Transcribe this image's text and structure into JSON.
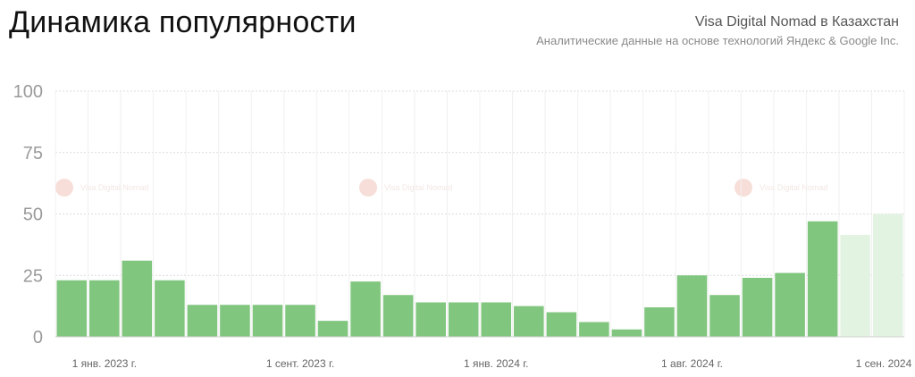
{
  "header": {
    "title": "Динамика популярности",
    "subtitle": "Visa Digital Nomad в Казахстан",
    "source": "Аналитические данные на основе технологий Яндекс & Google Inc."
  },
  "watermark": {
    "text": "Visa Digital Nomad",
    "color": "#f2c4bb"
  },
  "colors": {
    "bar": "#80c67e",
    "bar_projected": "#e3f3e2",
    "grid": "#dcdcdc"
  },
  "chart_data": {
    "type": "bar",
    "ylim": [
      0,
      100
    ],
    "yticks": [
      0,
      25,
      50,
      75,
      100
    ],
    "grid": true,
    "xtick_labels": [
      {
        "label": "1 янв. 2023 г.",
        "index": 1
      },
      {
        "label": "1 сент. 2023 г.",
        "index": 7
      },
      {
        "label": "1 янв. 2024 г.",
        "index": 13
      },
      {
        "label": "1 авг. 2024 г.",
        "index": 19
      },
      {
        "label": "1 сен. 2024 г.",
        "index": 25
      }
    ],
    "values": [
      23,
      23,
      31,
      23,
      13,
      13,
      13,
      13,
      6.5,
      22.5,
      17,
      14,
      14,
      14,
      12.5,
      10,
      6,
      3,
      12,
      25,
      17,
      24,
      26,
      47,
      41.5,
      50
    ],
    "projected": [
      false,
      false,
      false,
      false,
      false,
      false,
      false,
      false,
      false,
      false,
      false,
      false,
      false,
      false,
      false,
      false,
      false,
      false,
      false,
      false,
      false,
      false,
      false,
      false,
      true,
      true
    ]
  }
}
